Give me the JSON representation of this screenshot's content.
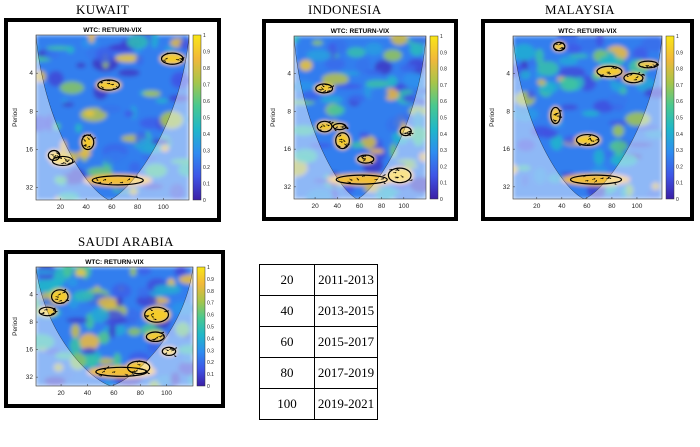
{
  "panels": [
    {
      "country": "KUWAIT",
      "title": "WTC: RETURN-VIX"
    },
    {
      "country": "INDONESIA",
      "title": "WTC: RETURN-VIX"
    },
    {
      "country": "MALAYSIA",
      "title": "WTC: RETURN-VIX"
    },
    {
      "country": "SAUDI ARABIA",
      "title": "WTC: RETURN-VIX"
    }
  ],
  "chart_data": {
    "type": "heatmap",
    "ylabel": "Period",
    "x_ticks": [
      20,
      40,
      60,
      80,
      100
    ],
    "y_ticks": [
      4,
      8,
      16,
      32
    ],
    "colorbar_ticks": [
      0,
      0.1,
      0.2,
      0.3,
      0.4,
      0.5,
      0.6,
      0.7,
      0.8,
      0.9,
      1
    ],
    "xlim": [
      1,
      120
    ],
    "ylim": [
      2,
      40
    ],
    "y_scale": "log2",
    "colormap": [
      "#3b1fa6",
      "#3f55e6",
      "#2f8cf0",
      "#1fb7c9",
      "#49c890",
      "#a7c54a",
      "#f1b83a",
      "#f9e616"
    ]
  },
  "period_table": {
    "rows": [
      {
        "obs": "20",
        "years": "2011-2013"
      },
      {
        "obs": "40",
        "years": "2013-2015"
      },
      {
        "obs": "60",
        "years": "2015-2017"
      },
      {
        "obs": "80",
        "years": "2017-2019"
      },
      {
        "obs": "100",
        "years": "2019-2021"
      }
    ]
  }
}
